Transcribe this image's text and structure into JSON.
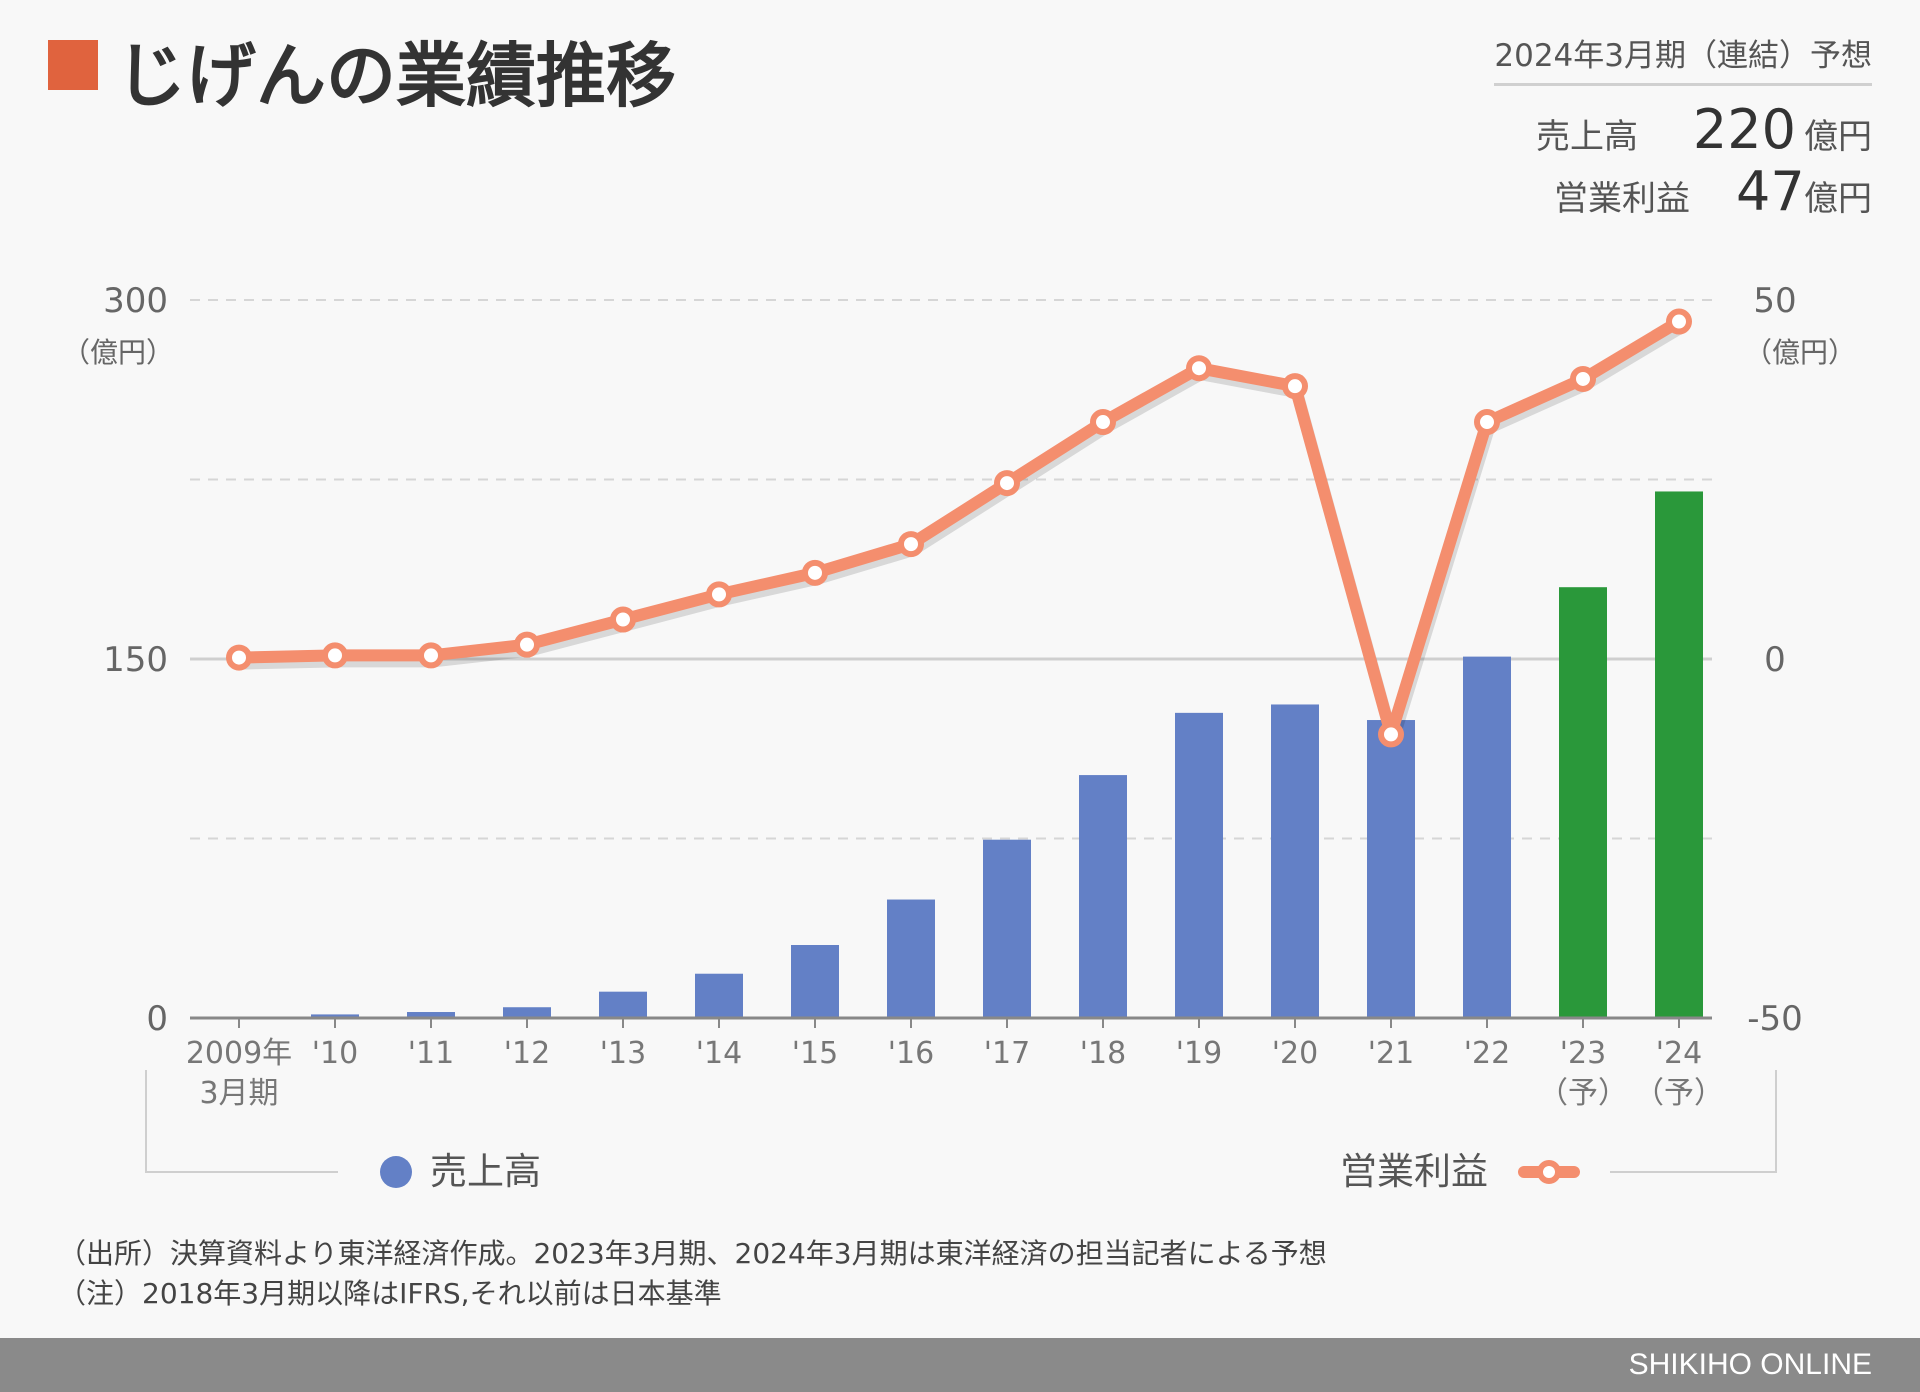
{
  "header": {
    "title": "じげんの業績推移",
    "forecast_period": "2024年3月期（連結）予想",
    "forecast_items": [
      {
        "label": "売上高",
        "value": "220",
        "unit": "億円"
      },
      {
        "label": "営業利益",
        "value": "47",
        "unit": "億円"
      }
    ]
  },
  "colors": {
    "title_accent": "#e0633e",
    "revenue_bar": "#6380c6",
    "forecast_bar": "#2a983a",
    "profit_line": "#f48e6e",
    "footer_bar": "#8a8a8a"
  },
  "chart_data": {
    "type": "bar+line",
    "categories": [
      "2009年 3月期",
      "'10",
      "'11",
      "'12",
      "'13",
      "'14",
      "'15",
      "'16",
      "'17",
      "'18",
      "'19",
      "'20",
      "'21",
      "'22",
      "'23 （予）",
      "'24 （予）"
    ],
    "category_lines": [
      [
        "2009年",
        "3月期"
      ],
      [
        "'10"
      ],
      [
        "'11"
      ],
      [
        "'12"
      ],
      [
        "'13"
      ],
      [
        "'14"
      ],
      [
        "'15"
      ],
      [
        "'16"
      ],
      [
        "'17"
      ],
      [
        "'18"
      ],
      [
        "'19"
      ],
      [
        "'20"
      ],
      [
        "'21"
      ],
      [
        "'22"
      ],
      [
        "'23",
        "（予）"
      ],
      [
        "'24",
        "（予）"
      ]
    ],
    "forecast_flags": [
      false,
      false,
      false,
      false,
      false,
      false,
      false,
      false,
      false,
      false,
      false,
      false,
      false,
      false,
      true,
      true
    ],
    "series": [
      {
        "name": "売上高",
        "type": "bar",
        "axis": "left",
        "values": [
          0.5,
          1.5,
          2.5,
          4.5,
          11,
          18.5,
          30.5,
          49.5,
          74.5,
          101.5,
          127.5,
          131,
          124.5,
          151,
          180,
          220
        ]
      },
      {
        "name": "営業利益",
        "type": "line",
        "axis": "right",
        "values": [
          0.2,
          0.5,
          0.5,
          2,
          5.5,
          9,
          12,
          16,
          24.5,
          33,
          40.5,
          38,
          -10.5,
          33,
          39,
          47
        ]
      }
    ],
    "left_axis": {
      "min": 0,
      "max": 300,
      "ticks": [
        0,
        150,
        300
      ],
      "unit": "（億円）"
    },
    "right_axis": {
      "min": -50,
      "max": 50,
      "ticks": [
        -50,
        0,
        50
      ],
      "unit": "（億円）"
    },
    "grid": true,
    "legend_placement": "bottom"
  },
  "notes": [
    "（出所）決算資料より東洋経済作成。2023年3月期、2024年3月期は東洋経済の担当記者による予想",
    "（注）2018年3月期以降はIFRS,それ以前は日本基準"
  ],
  "footer": {
    "brand": "SHIKIHO ONLINE"
  }
}
